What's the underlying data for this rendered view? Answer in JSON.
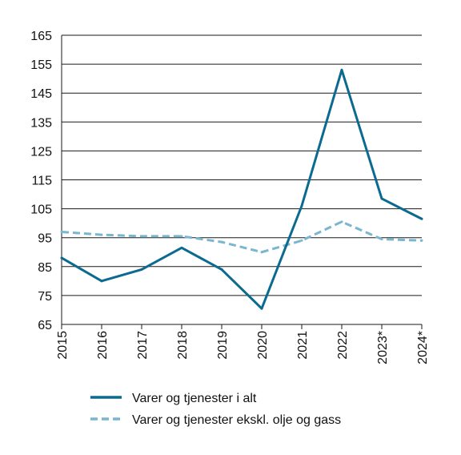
{
  "chart_data": {
    "type": "line",
    "categories": [
      "2015",
      "2016",
      "2017",
      "2018",
      "2019",
      "2020",
      "2021",
      "2022",
      "2023*",
      "2024*"
    ],
    "series": [
      {
        "name": "Varer og tjenester i alt",
        "color": "#0a6a8f",
        "style": "solid",
        "values": [
          88,
          80,
          84,
          91.5,
          84,
          70.5,
          106,
          153,
          108.5,
          101.5
        ]
      },
      {
        "name": "Varer og tjenester ekskl. olje og gass",
        "color": "#7ab6cf",
        "style": "dashed",
        "values": [
          97,
          96,
          95.5,
          95.5,
          93.5,
          90,
          94,
          100.5,
          94.5,
          94
        ]
      }
    ],
    "yticks": [
      65,
      75,
      85,
      95,
      105,
      115,
      125,
      135,
      145,
      155,
      165
    ],
    "ylim": [
      65,
      165
    ],
    "grid": true,
    "legend_position": "bottom",
    "title": "",
    "xlabel": "",
    "ylabel": ""
  }
}
